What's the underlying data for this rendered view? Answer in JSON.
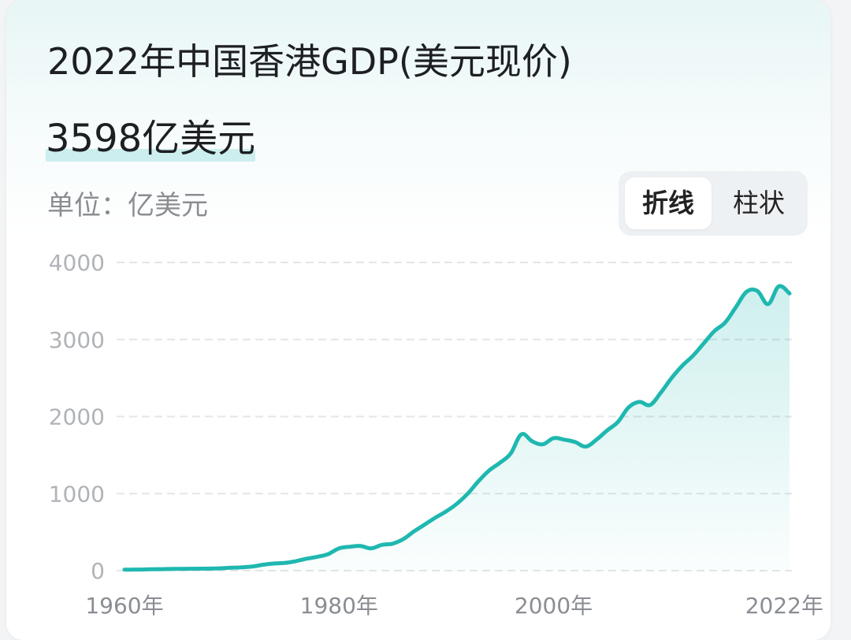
{
  "header": {
    "title": "2022年中国香港GDP(美元现价)",
    "value": "3598亿美元",
    "unit_label": "单位：亿美元"
  },
  "toggle": {
    "options": [
      "折线",
      "柱状"
    ],
    "selected": "折线"
  },
  "colors": {
    "line": "#1fb8b0",
    "grid": "#e3e5e8",
    "tick_text": "#b0b3b8"
  },
  "chart_data": {
    "type": "area",
    "title": "2022年中国香港GDP(美元现价)",
    "ylabel": "亿美元",
    "ylim": [
      0,
      4000
    ],
    "yticks": [
      0,
      1000,
      2000,
      3000,
      4000
    ],
    "xlim": [
      1960,
      2022
    ],
    "xticks": [
      "1960年",
      "1980年",
      "2000年",
      "2022年"
    ],
    "grid": true,
    "x": [
      1960,
      1961,
      1962,
      1963,
      1964,
      1965,
      1966,
      1967,
      1968,
      1969,
      1970,
      1971,
      1972,
      1973,
      1974,
      1975,
      1976,
      1977,
      1978,
      1979,
      1980,
      1981,
      1982,
      1983,
      1984,
      1985,
      1986,
      1987,
      1988,
      1989,
      1990,
      1991,
      1992,
      1993,
      1994,
      1995,
      1996,
      1997,
      1998,
      1999,
      2000,
      2001,
      2002,
      2003,
      2004,
      2005,
      2006,
      2007,
      2008,
      2009,
      2010,
      2011,
      2012,
      2013,
      2014,
      2015,
      2016,
      2017,
      2018,
      2019,
      2020,
      2021,
      2022
    ],
    "series": [
      {
        "values": [
          13,
          14,
          16,
          19,
          21,
          24,
          25,
          26,
          27,
          31,
          38,
          44,
          55,
          78,
          93,
          101,
          124,
          156,
          180,
          215,
          290,
          310,
          320,
          290,
          335,
          350,
          410,
          510,
          600,
          690,
          770,
          870,
          1000,
          1160,
          1300,
          1400,
          1520,
          1770,
          1680,
          1640,
          1720,
          1700,
          1670,
          1610,
          1700,
          1820,
          1930,
          2120,
          2190,
          2150,
          2310,
          2500,
          2660,
          2790,
          2950,
          3110,
          3220,
          3420,
          3620,
          3630,
          3460,
          3690,
          3598
        ]
      }
    ]
  }
}
